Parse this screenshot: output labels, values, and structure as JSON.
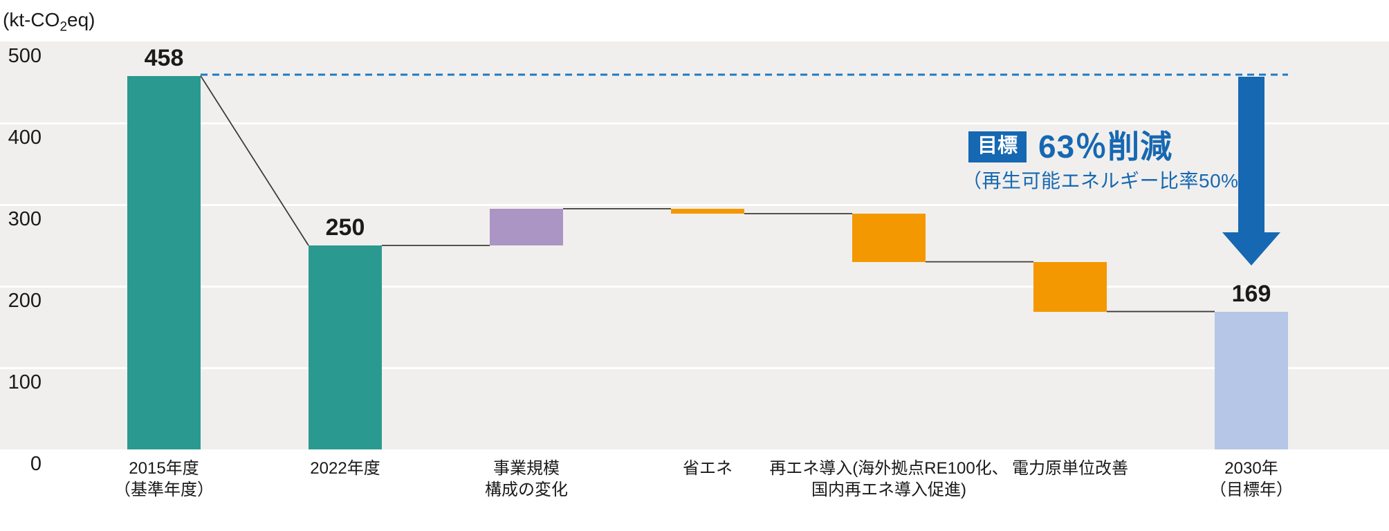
{
  "colors": {
    "teal": "#2a9990",
    "purple": "#ab95c4",
    "orange": "#f39800",
    "light_blue": "#b5c6e6",
    "accent_blue": "#1668b2",
    "dotted_blue": "#1d7ac5",
    "plot_bg": "#f1efed",
    "gridline": "#ffffff",
    "connector": "#3c3c3c",
    "text": "#1a1a1a",
    "badge_text": "#ffffff"
  },
  "unit_label": {
    "prefix": "(kt-CO",
    "sub": "2",
    "suffix": "eq)"
  },
  "chart_data": {
    "type": "bar",
    "subtype": "waterfall",
    "title": "",
    "ylabel": "(kt-CO₂eq)",
    "ylim": [
      0,
      500
    ],
    "yticks": [
      500,
      400,
      300,
      200,
      100,
      0
    ],
    "grid": "horizontal-white-lines-on-gray",
    "legend": "none",
    "reference_line": {
      "value": 458,
      "style": "dotted"
    },
    "bars": [
      {
        "id": "fy2015-base",
        "kind": "total",
        "start": 0,
        "end": 458,
        "value_label": "458",
        "color_key": "teal",
        "label_lines": [
          "2015年度",
          "（基準年度）"
        ]
      },
      {
        "id": "fy2022",
        "kind": "total",
        "start": 0,
        "end": 250,
        "value_label": "250",
        "color_key": "teal",
        "label_lines": [
          "2022年度"
        ]
      },
      {
        "id": "business-scale-change",
        "kind": "increase",
        "start": 250,
        "end": 295,
        "value_label": null,
        "color_key": "purple",
        "label_lines": [
          "事業規模",
          "構成の変化"
        ]
      },
      {
        "id": "energy-saving",
        "kind": "decrease",
        "start": 295,
        "end": 289,
        "value_label": null,
        "color_key": "orange",
        "label_lines": [
          "省エネ"
        ]
      },
      {
        "id": "renewable-energy-introduction",
        "kind": "decrease",
        "start": 289,
        "end": 230,
        "value_label": null,
        "color_key": "orange",
        "label_lines": [
          "再エネ導入(海外拠点RE100化、",
          "国内再エネ導入促進)"
        ]
      },
      {
        "id": "power-intensity-improvement",
        "kind": "decrease",
        "start": 230,
        "end": 169,
        "value_label": null,
        "color_key": "orange",
        "label_lines": [
          "電力原単位改善"
        ]
      },
      {
        "id": "fy2030-target",
        "kind": "total",
        "start": 0,
        "end": 169,
        "value_label": "169",
        "color_key": "light_blue",
        "label_lines": [
          "2030年",
          "（目標年）"
        ]
      }
    ],
    "target_annotation": {
      "badge": "目標",
      "headline": "63％削減",
      "subline": "（再生可能エネルギー比率50%）",
      "arrow": {
        "direction": "down",
        "from_value": 458,
        "to_value": 169
      }
    }
  }
}
